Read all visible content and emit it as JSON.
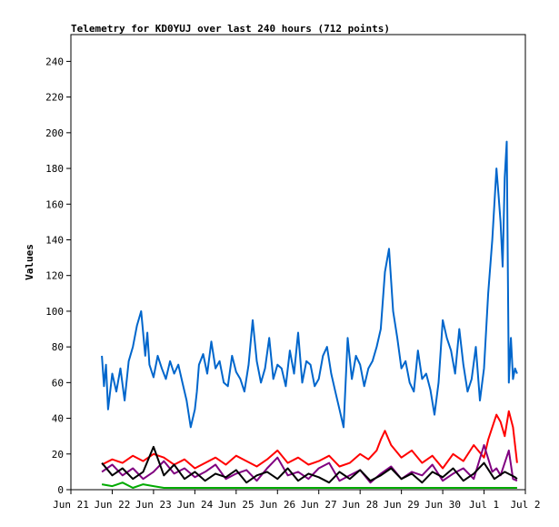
{
  "chart_data": {
    "type": "line",
    "title": "Telemetry for KD0YUJ over last 240 hours (712 points)",
    "ylabel": "Values",
    "xlabel": "",
    "x_ticks": [
      "Jun 21",
      "Jun 22",
      "Jun 23",
      "Jun 24",
      "Jun 25",
      "Jun 26",
      "Jun 27",
      "Jun 28",
      "Jun 29",
      "Jun 30",
      "Jul 1",
      "Jul 2"
    ],
    "y_ticks": [
      0,
      20,
      40,
      60,
      80,
      100,
      120,
      140,
      160,
      180,
      200,
      220,
      240
    ],
    "ylim": [
      0,
      255
    ],
    "xlim": [
      0,
      11
    ],
    "grid": false,
    "legend": "none",
    "x_unit": "days since Jun 21",
    "series": [
      {
        "color": "#0066cc",
        "x": [
          0.75,
          0.8,
          0.85,
          0.9,
          1.0,
          1.1,
          1.2,
          1.3,
          1.4,
          1.5,
          1.6,
          1.7,
          1.8,
          1.85,
          1.9,
          2.0,
          2.1,
          2.2,
          2.3,
          2.4,
          2.5,
          2.6,
          2.7,
          2.8,
          2.9,
          3.0,
          3.05,
          3.1,
          3.2,
          3.3,
          3.4,
          3.5,
          3.6,
          3.7,
          3.8,
          3.9,
          4.0,
          4.1,
          4.2,
          4.3,
          4.4,
          4.5,
          4.6,
          4.7,
          4.8,
          4.9,
          5.0,
          5.1,
          5.2,
          5.3,
          5.4,
          5.5,
          5.6,
          5.7,
          5.8,
          5.9,
          6.0,
          6.1,
          6.2,
          6.3,
          6.4,
          6.5,
          6.6,
          6.7,
          6.8,
          6.9,
          7.0,
          7.1,
          7.2,
          7.3,
          7.4,
          7.5,
          7.6,
          7.7,
          7.8,
          7.9,
          8.0,
          8.1,
          8.2,
          8.3,
          8.4,
          8.5,
          8.6,
          8.7,
          8.8,
          8.9,
          9.0,
          9.1,
          9.2,
          9.3,
          9.4,
          9.5,
          9.6,
          9.7,
          9.8,
          9.9,
          10.0,
          10.1,
          10.2,
          10.3,
          10.35,
          10.4,
          10.45,
          10.5,
          10.55,
          10.6,
          10.65,
          10.7,
          10.75,
          10.8
        ],
        "values": [
          75,
          58,
          70,
          45,
          65,
          55,
          68,
          50,
          72,
          80,
          92,
          100,
          75,
          88,
          70,
          63,
          75,
          68,
          62,
          72,
          65,
          70,
          60,
          50,
          35,
          45,
          55,
          70,
          76,
          65,
          83,
          68,
          72,
          60,
          58,
          75,
          66,
          62,
          55,
          70,
          95,
          72,
          60,
          68,
          85,
          62,
          70,
          68,
          58,
          78,
          65,
          88,
          60,
          72,
          70,
          58,
          62,
          75,
          80,
          65,
          55,
          45,
          35,
          85,
          62,
          75,
          70,
          58,
          68,
          72,
          80,
          90,
          122,
          135,
          100,
          85,
          68,
          72,
          60,
          55,
          78,
          62,
          65,
          56,
          42,
          60,
          95,
          85,
          78,
          65,
          90,
          70,
          55,
          62,
          80,
          50,
          68,
          110,
          140,
          180,
          165,
          150,
          125,
          175,
          195,
          60,
          85,
          62,
          68,
          65
        ]
      },
      {
        "color": "#ff0000",
        "x": [
          0.75,
          1.0,
          1.25,
          1.5,
          1.75,
          2.0,
          2.25,
          2.5,
          2.75,
          3.0,
          3.25,
          3.5,
          3.75,
          4.0,
          4.25,
          4.5,
          4.75,
          5.0,
          5.25,
          5.5,
          5.75,
          6.0,
          6.25,
          6.5,
          6.75,
          7.0,
          7.2,
          7.4,
          7.5,
          7.6,
          7.75,
          8.0,
          8.25,
          8.5,
          8.75,
          9.0,
          9.25,
          9.5,
          9.75,
          10.0,
          10.1,
          10.2,
          10.3,
          10.4,
          10.5,
          10.6,
          10.7,
          10.8
        ],
        "values": [
          14,
          17,
          15,
          19,
          16,
          20,
          18,
          14,
          17,
          12,
          15,
          18,
          14,
          19,
          16,
          13,
          17,
          22,
          15,
          18,
          14,
          16,
          19,
          13,
          15,
          20,
          17,
          22,
          28,
          33,
          25,
          18,
          22,
          15,
          19,
          12,
          20,
          16,
          25,
          18,
          28,
          35,
          42,
          38,
          30,
          44,
          35,
          15
        ]
      },
      {
        "color": "#800080",
        "x": [
          0.75,
          1.0,
          1.25,
          1.5,
          1.75,
          2.0,
          2.25,
          2.5,
          2.75,
          3.0,
          3.25,
          3.5,
          3.75,
          4.0,
          4.25,
          4.5,
          4.75,
          5.0,
          5.25,
          5.5,
          5.75,
          6.0,
          6.25,
          6.5,
          6.75,
          7.0,
          7.25,
          7.5,
          7.75,
          8.0,
          8.25,
          8.5,
          8.75,
          9.0,
          9.25,
          9.5,
          9.75,
          10.0,
          10.2,
          10.3,
          10.4,
          10.5,
          10.6,
          10.7,
          10.8
        ],
        "values": [
          10,
          14,
          8,
          12,
          6,
          10,
          16,
          9,
          12,
          7,
          10,
          14,
          6,
          9,
          11,
          5,
          12,
          18,
          8,
          10,
          6,
          12,
          15,
          5,
          8,
          11,
          4,
          9,
          13,
          6,
          10,
          8,
          14,
          5,
          9,
          12,
          6,
          25,
          10,
          12,
          8,
          15,
          22,
          6,
          5
        ]
      },
      {
        "color": "#000000",
        "x": [
          0.75,
          1.0,
          1.25,
          1.5,
          1.75,
          2.0,
          2.25,
          2.5,
          2.75,
          3.0,
          3.25,
          3.5,
          3.75,
          4.0,
          4.25,
          4.5,
          4.75,
          5.0,
          5.25,
          5.5,
          5.75,
          6.0,
          6.25,
          6.5,
          6.75,
          7.0,
          7.25,
          7.5,
          7.75,
          8.0,
          8.25,
          8.5,
          8.75,
          9.0,
          9.25,
          9.5,
          9.75,
          10.0,
          10.25,
          10.5,
          10.75,
          10.8
        ],
        "values": [
          15,
          8,
          12,
          6,
          10,
          24,
          8,
          14,
          6,
          10,
          5,
          9,
          7,
          11,
          4,
          8,
          10,
          6,
          12,
          5,
          9,
          7,
          4,
          10,
          6,
          11,
          5,
          8,
          12,
          6,
          9,
          4,
          10,
          7,
          12,
          5,
          9,
          15,
          6,
          10,
          7,
          6
        ]
      },
      {
        "color": "#00aa00",
        "x": [
          0.75,
          1.0,
          1.25,
          1.5,
          1.75,
          2.0,
          2.25,
          2.5,
          3.0,
          3.5,
          4.0,
          4.5,
          5.0,
          5.5,
          6.0,
          6.5,
          7.0,
          7.5,
          8.0,
          8.5,
          9.0,
          9.5,
          10.0,
          10.5,
          10.8
        ],
        "values": [
          3,
          2,
          4,
          1,
          3,
          2,
          1,
          1,
          1,
          1,
          1,
          1,
          1,
          1,
          1,
          1,
          1,
          1,
          1,
          1,
          1,
          1,
          1,
          1,
          1
        ]
      }
    ]
  }
}
